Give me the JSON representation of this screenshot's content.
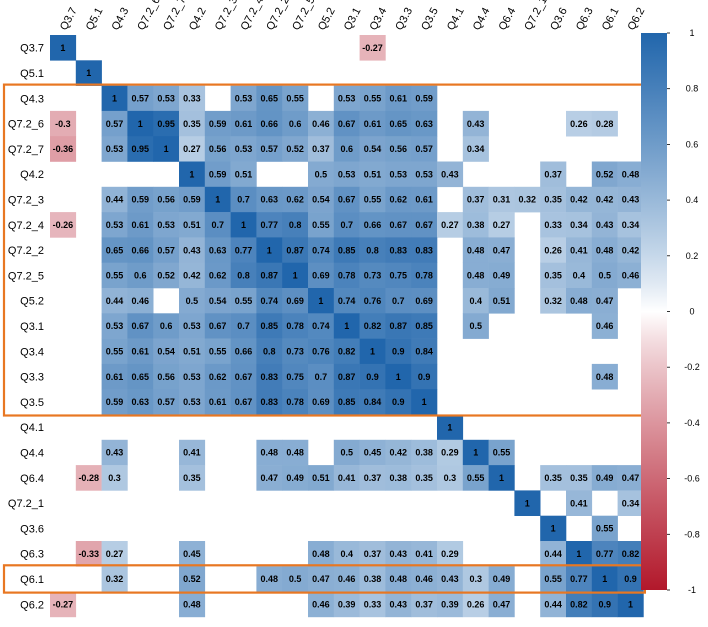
{
  "chart_data": {
    "type": "heatmap",
    "title": "",
    "variables": [
      "Q3.7",
      "Q5.1",
      "Q4.3",
      "Q7.2_6",
      "Q7.2_7",
      "Q4.2",
      "Q7.2_3",
      "Q7.2_4",
      "Q7.2_2",
      "Q7.2_5",
      "Q5.2",
      "Q3.1",
      "Q3.4",
      "Q3.3",
      "Q3.5",
      "Q4.1",
      "Q4.4",
      "Q6.4",
      "Q7.2_1",
      "Q3.6",
      "Q6.3",
      "Q6.1",
      "Q6.2"
    ],
    "matrix": [
      [
        1,
        null,
        null,
        null,
        null,
        null,
        null,
        null,
        null,
        null,
        null,
        null,
        -0.27,
        null,
        null,
        null,
        null,
        null,
        null,
        null,
        null,
        null,
        null
      ],
      [
        null,
        1,
        null,
        null,
        null,
        null,
        null,
        null,
        null,
        null,
        null,
        null,
        null,
        null,
        null,
        null,
        null,
        null,
        null,
        null,
        null,
        null,
        null
      ],
      [
        null,
        null,
        1,
        0.57,
        0.53,
        0.33,
        null,
        0.53,
        0.65,
        0.55,
        null,
        0.53,
        0.55,
        0.61,
        0.59,
        null,
        null,
        null,
        null,
        null,
        null,
        null,
        null
      ],
      [
        -0.3,
        null,
        0.57,
        1,
        0.95,
        0.35,
        0.59,
        0.61,
        0.66,
        0.6,
        0.46,
        0.67,
        0.61,
        0.65,
        0.63,
        null,
        0.43,
        null,
        null,
        null,
        0.26,
        0.28,
        null
      ],
      [
        -0.36,
        null,
        0.53,
        0.95,
        1,
        0.27,
        0.56,
        0.53,
        0.57,
        0.52,
        0.37,
        0.6,
        0.54,
        0.56,
        0.57,
        null,
        0.34,
        null,
        null,
        null,
        null,
        null,
        null
      ],
      [
        null,
        null,
        null,
        null,
        null,
        1,
        0.59,
        0.51,
        null,
        null,
        0.5,
        0.53,
        0.51,
        0.53,
        0.53,
        0.43,
        null,
        null,
        null,
        0.37,
        null,
        0.52,
        0.48
      ],
      [
        null,
        null,
        0.44,
        0.59,
        0.56,
        0.59,
        1,
        0.7,
        0.63,
        0.62,
        0.54,
        0.67,
        0.55,
        0.62,
        0.61,
        null,
        0.37,
        0.31,
        0.32,
        0.35,
        0.42,
        0.42,
        0.43
      ],
      [
        -0.26,
        null,
        0.53,
        0.61,
        0.53,
        0.51,
        0.7,
        1,
        0.77,
        0.8,
        0.55,
        0.7,
        0.66,
        0.67,
        0.67,
        0.27,
        0.38,
        0.27,
        null,
        0.33,
        0.34,
        0.43,
        0.34
      ],
      [
        null,
        null,
        0.65,
        0.66,
        0.57,
        0.43,
        0.63,
        0.77,
        1,
        0.87,
        0.74,
        0.85,
        0.8,
        0.83,
        0.83,
        null,
        0.48,
        0.47,
        null,
        0.26,
        0.41,
        0.48,
        0.42
      ],
      [
        null,
        null,
        0.55,
        0.6,
        0.52,
        0.42,
        0.62,
        0.8,
        0.87,
        1,
        0.69,
        0.78,
        0.73,
        0.75,
        0.78,
        null,
        0.48,
        0.49,
        null,
        0.35,
        0.4,
        0.5,
        0.46
      ],
      [
        null,
        null,
        0.44,
        0.46,
        null,
        0.5,
        0.54,
        0.55,
        0.74,
        0.69,
        1,
        0.74,
        0.76,
        0.7,
        0.69,
        null,
        0.4,
        0.51,
        null,
        0.32,
        0.48,
        0.47,
        null
      ],
      [
        null,
        null,
        0.53,
        0.67,
        0.6,
        0.53,
        0.67,
        0.7,
        0.85,
        0.78,
        0.74,
        1,
        0.82,
        0.87,
        0.85,
        null,
        0.5,
        null,
        null,
        null,
        null,
        0.46,
        null
      ],
      [
        null,
        null,
        0.55,
        0.61,
        0.54,
        0.51,
        0.55,
        0.66,
        0.8,
        0.73,
        0.76,
        0.82,
        1,
        0.9,
        0.84,
        null,
        null,
        null,
        null,
        null,
        null,
        null,
        null
      ],
      [
        null,
        null,
        0.61,
        0.65,
        0.56,
        0.53,
        0.62,
        0.67,
        0.83,
        0.75,
        0.7,
        0.87,
        0.9,
        1,
        0.9,
        null,
        null,
        null,
        null,
        null,
        null,
        0.48,
        null
      ],
      [
        null,
        null,
        0.59,
        0.63,
        0.57,
        0.53,
        0.61,
        0.67,
        0.83,
        0.78,
        0.69,
        0.85,
        0.84,
        0.9,
        1,
        null,
        null,
        null,
        null,
        null,
        null,
        null,
        null
      ],
      [
        null,
        null,
        null,
        null,
        null,
        null,
        null,
        null,
        null,
        null,
        null,
        null,
        null,
        null,
        null,
        1,
        null,
        null,
        null,
        null,
        null,
        null,
        null
      ],
      [
        null,
        null,
        0.43,
        null,
        null,
        0.41,
        null,
        null,
        0.48,
        0.48,
        null,
        0.5,
        0.45,
        0.42,
        0.38,
        0.29,
        1,
        0.55,
        null,
        null,
        null,
        null,
        null
      ],
      [
        null,
        -0.28,
        0.3,
        null,
        null,
        0.35,
        null,
        null,
        0.47,
        0.49,
        0.51,
        0.41,
        0.37,
        0.38,
        0.35,
        0.3,
        0.55,
        1,
        null,
        0.35,
        0.35,
        0.49,
        0.47
      ],
      [
        null,
        null,
        null,
        null,
        null,
        null,
        null,
        null,
        null,
        null,
        null,
        null,
        null,
        null,
        null,
        null,
        null,
        null,
        1,
        null,
        0.41,
        null,
        0.34
      ],
      [
        null,
        null,
        null,
        null,
        null,
        null,
        null,
        null,
        null,
        null,
        null,
        null,
        null,
        null,
        null,
        null,
        null,
        null,
        null,
        1,
        null,
        0.55,
        null
      ],
      [
        null,
        -0.33,
        0.27,
        null,
        null,
        0.45,
        null,
        null,
        null,
        null,
        0.48,
        0.4,
        0.37,
        0.43,
        0.41,
        0.29,
        null,
        null,
        null,
        0.44,
        1,
        0.77,
        0.82
      ],
      [
        null,
        null,
        0.32,
        null,
        null,
        0.52,
        null,
        null,
        0.48,
        0.5,
        0.47,
        0.46,
        0.38,
        0.48,
        0.46,
        0.43,
        0.3,
        0.49,
        null,
        0.55,
        0.77,
        1,
        0.9
      ],
      [
        -0.27,
        null,
        null,
        null,
        null,
        0.48,
        null,
        null,
        null,
        null,
        0.46,
        0.39,
        0.33,
        0.43,
        0.37,
        0.39,
        0.26,
        0.47,
        null,
        0.44,
        0.82,
        0.9,
        1
      ]
    ],
    "value_range": [
      -1,
      1
    ],
    "colorbar": {
      "ticks": [
        1,
        0.8,
        0.6,
        0.4,
        0.2,
        0,
        -0.2,
        -0.4,
        -0.6,
        -0.8,
        -1
      ],
      "tick_labels": [
        "1",
        "0.8",
        "0.6",
        "0.4",
        "0.2",
        "0",
        "-0.2",
        "-0.4",
        "-0.6",
        "-0.8",
        "-1"
      ],
      "placement": "right"
    },
    "colors": {
      "positive": "#2166ac",
      "neutral": "#ffffff",
      "negative": "#b2182b",
      "highlight_border": "#e87722"
    },
    "highlighted_row_ranges": [
      [
        "Q4.3",
        "Q3.5"
      ],
      [
        "Q6.1",
        "Q6.1"
      ]
    ],
    "grid": false
  }
}
